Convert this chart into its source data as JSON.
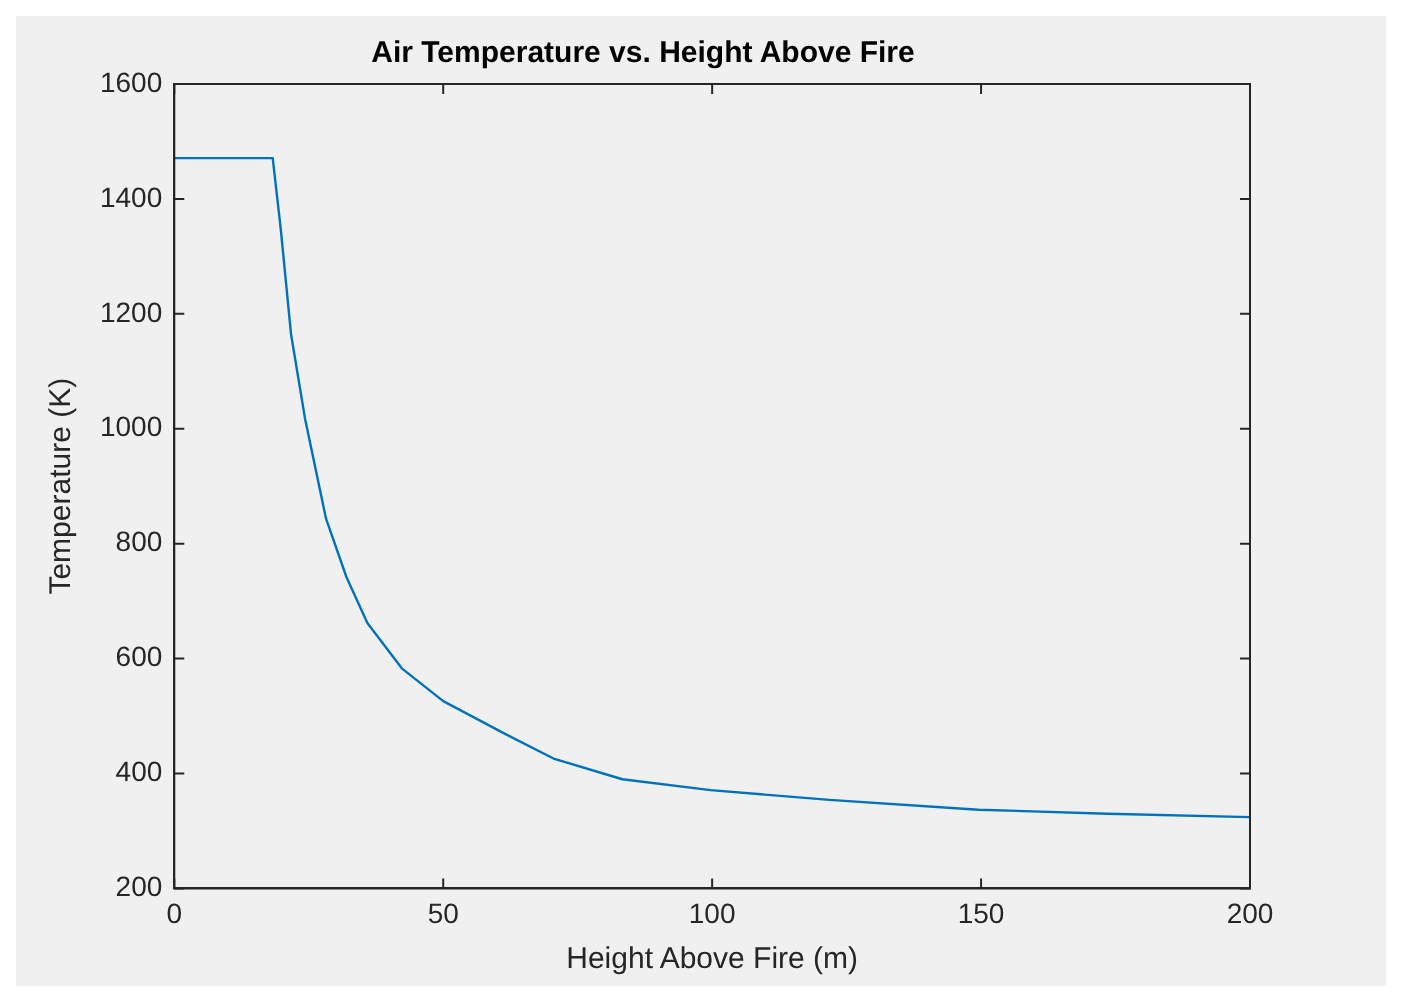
{
  "chart_data": {
    "type": "line",
    "title": "Air Temperature vs. Height Above Fire",
    "xlabel": "Height Above Fire (m)",
    "ylabel": "Temperature (K)",
    "series": [
      {
        "color": "#0072bd",
        "x": [
          0,
          18.3,
          19.8,
          21.7,
          24.3,
          28.2,
          32,
          35.9,
          42.3,
          50,
          61.5,
          70.5,
          83.3,
          99.7,
          121.8,
          149.5,
          173.5,
          200
        ],
        "values": [
          1471,
          1471,
          1347,
          1165,
          1018,
          844,
          742,
          662,
          583,
          526,
          469,
          426,
          390,
          371,
          354,
          337,
          330,
          324
        ]
      }
    ],
    "xlim": [
      0,
      200
    ],
    "xticks": [
      0,
      50,
      100,
      150,
      200
    ],
    "ylim": [
      200,
      1600
    ],
    "yticks": [
      200,
      400,
      600,
      800,
      1000,
      1200,
      1400,
      1600
    ],
    "grid": false,
    "legend": false,
    "marker": "none",
    "line_style": "solid"
  }
}
